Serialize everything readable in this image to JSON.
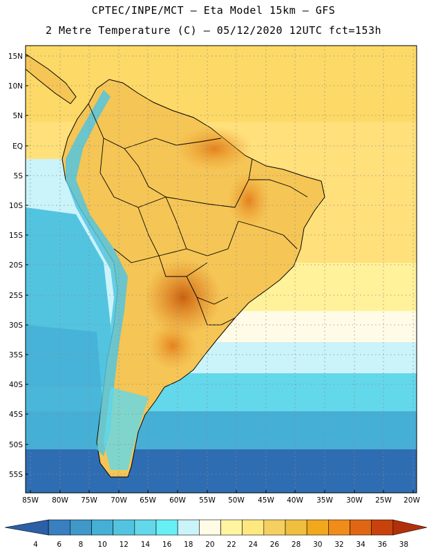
{
  "header": {
    "line1": "CPTEC/INPE/MCT –  Eta Model 15km – GFS",
    "line2": "2 Metre Temperature (C) – 05/12/2020 12UTC fct=153h"
  },
  "map": {
    "lat_labels": [
      "15N",
      "10N",
      "5N",
      "EQ",
      "5S",
      "10S",
      "15S",
      "20S",
      "25S",
      "30S",
      "35S",
      "40S",
      "45S",
      "50S",
      "55S"
    ],
    "lon_labels": [
      "85W",
      "80W",
      "75W",
      "70W",
      "65W",
      "60W",
      "55W",
      "50W",
      "45W",
      "40W",
      "35W",
      "30W",
      "25W",
      "20W"
    ]
  },
  "colorbar": {
    "labels": [
      "4",
      "6",
      "8",
      "10",
      "12",
      "14",
      "16",
      "18",
      "20",
      "22",
      "24",
      "26",
      "28",
      "30",
      "32",
      "34",
      "36",
      "38"
    ],
    "colors": [
      "#2b5fa6",
      "#3a7fbf",
      "#3e98c8",
      "#45afd6",
      "#52c4e0",
      "#62d8ea",
      "#66f0f6",
      "#caf3fa",
      "#fffbe6",
      "#fff5a0",
      "#ffe880",
      "#f5d060",
      "#f0bf40",
      "#f2a81c",
      "#ef8c1a",
      "#e06614",
      "#c8420c",
      "#b0300a"
    ]
  }
}
